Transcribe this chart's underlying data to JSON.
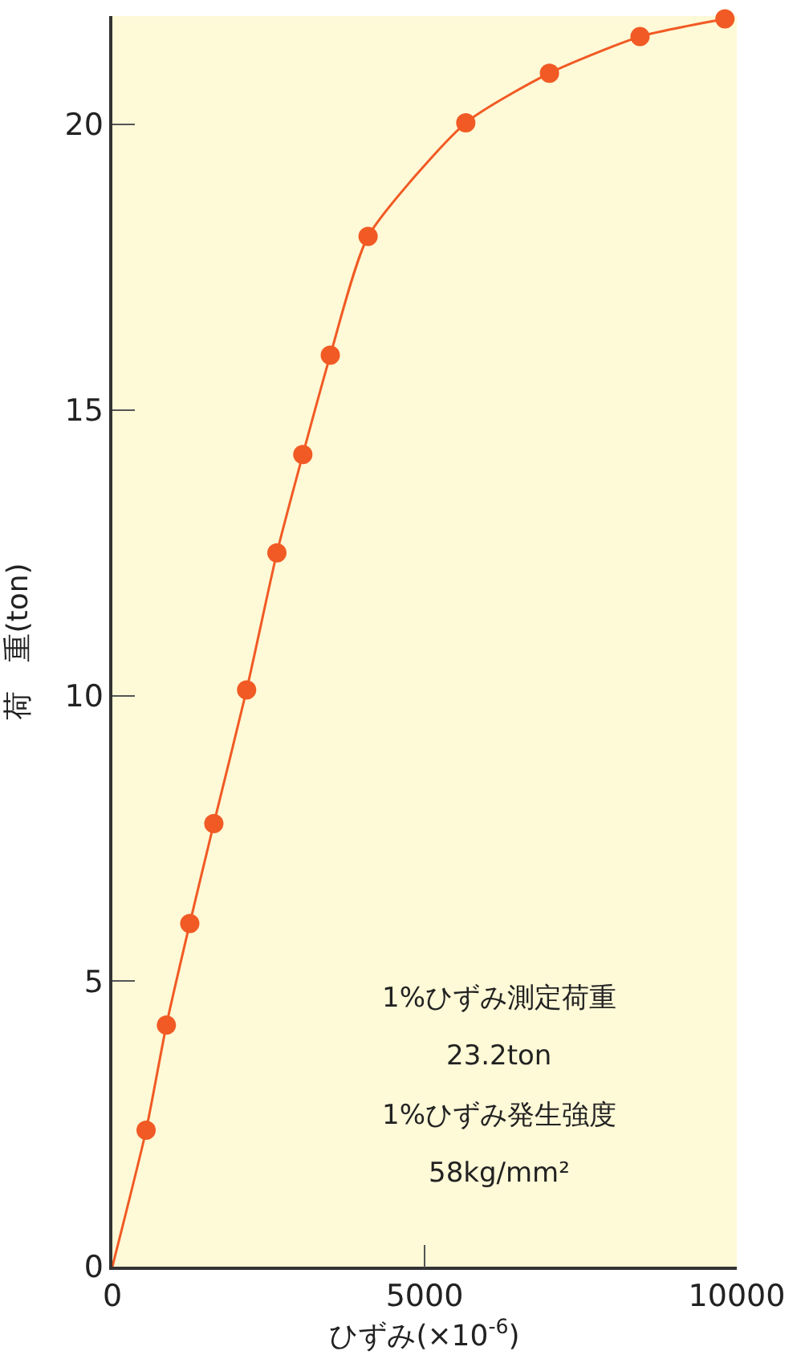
{
  "chart_data": {
    "type": "scatter",
    "xlabel": "ひずみ(×10$^{-6}$)",
    "ylabel": "荷　重(ton)",
    "xlim": [
      0,
      10000
    ],
    "ylim": [
      0,
      21.9
    ],
    "xticks": [
      0,
      5000,
      10000
    ],
    "yticks": [
      0,
      5,
      10,
      15,
      20
    ],
    "grid": false,
    "marker": "circle",
    "series": [
      {
        "color": "#f15a24",
        "x": [
          540,
          865,
          1240,
          1625,
          2150,
          2635,
          3050,
          3490,
          4095,
          5660,
          7000,
          8450,
          9810
        ],
        "values": [
          2.39,
          4.23,
          6.01,
          7.76,
          10.1,
          12.5,
          14.22,
          15.96,
          18.04,
          20.03,
          20.9,
          21.54,
          21.85
        ]
      },
      {
        "type": "line",
        "color": "#f15a24",
        "marker": "none",
        "x": [
          0,
          540,
          865,
          1240,
          1625,
          2150,
          2635,
          3050,
          3490,
          4095,
          5660,
          7000,
          8450,
          9810
        ],
        "values": [
          0,
          2.39,
          4.23,
          6.01,
          7.76,
          10.1,
          12.5,
          14.22,
          15.96,
          18.04,
          20.03,
          20.9,
          21.54,
          21.85
        ]
      }
    ],
    "annotations": [
      "1%ひずみ測定荷重",
      "23.2ton",
      "1%ひずみ発生強度",
      "58kg/mm²"
    ]
  }
}
